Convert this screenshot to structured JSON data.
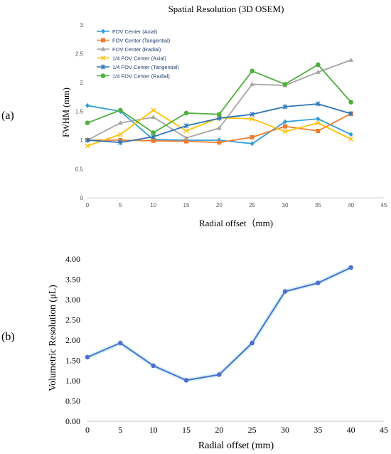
{
  "chart_data": [
    {
      "panel_label": "(a)",
      "type": "line",
      "title": "Spatial Resolution (3D OSEM)",
      "xlabel": "Radial offset（mm)",
      "ylabel": "FWHM (mm)",
      "xlim": [
        0,
        45
      ],
      "ylim": [
        0,
        3
      ],
      "xticks": [
        "0",
        "5",
        "10",
        "15",
        "20",
        "25",
        "30",
        "35",
        "40",
        "45"
      ],
      "yticks": [
        "0",
        "0.5",
        "1",
        "1.5",
        "2",
        "2.5",
        "3"
      ],
      "legend_position": "top-left",
      "grid": false,
      "x": [
        0,
        5,
        10,
        15,
        20,
        25,
        30,
        35,
        40
      ],
      "series": [
        {
          "name": "FOV Center (Axial)",
          "color": "#2e9fd6",
          "marker": "diamond",
          "values": [
            1.6,
            1.5,
            1.01,
            1.0,
            1.0,
            0.94,
            1.32,
            1.37,
            1.1
          ]
        },
        {
          "name": "FOV Center (Tangential)",
          "color": "#ed7d31",
          "marker": "square",
          "values": [
            1.0,
            1.0,
            0.99,
            0.98,
            0.96,
            1.05,
            1.24,
            1.16,
            1.46
          ]
        },
        {
          "name": "FOV Center (Radial)",
          "color": "#a5a5a5",
          "marker": "triangle",
          "values": [
            1.0,
            1.3,
            1.4,
            1.04,
            1.21,
            1.97,
            1.95,
            2.18,
            2.39
          ]
        },
        {
          "name": "1/4 FOV Center (Axial)",
          "color": "#ffc000",
          "marker": "x",
          "values": [
            0.9,
            1.1,
            1.52,
            1.16,
            1.39,
            1.37,
            1.15,
            1.3,
            1.02
          ]
        },
        {
          "name": "1/4 FOV Center (Tangential)",
          "color": "#2e75b6",
          "marker": "star",
          "values": [
            1.0,
            0.96,
            1.06,
            1.25,
            1.38,
            1.45,
            1.58,
            1.63,
            1.46
          ]
        },
        {
          "name": "1/4 FOV Center (Radial)",
          "color": "#4eaf3c",
          "marker": "circle",
          "values": [
            1.3,
            1.52,
            1.13,
            1.47,
            1.45,
            2.2,
            1.97,
            2.31,
            1.66
          ]
        }
      ]
    },
    {
      "panel_label": "(b)",
      "type": "line",
      "xlabel": "Radial offset (mm)",
      "ylabel": "Volumetric Resolution (μL)",
      "xlim": [
        0,
        45
      ],
      "ylim": [
        0,
        4
      ],
      "xticks": [
        "0",
        "5",
        "10",
        "15",
        "20",
        "25",
        "30",
        "35",
        "40",
        "45"
      ],
      "yticks": [
        "0.00",
        "0.50",
        "1.00",
        "1.50",
        "2.00",
        "2.50",
        "3.00",
        "3.50",
        "4.00"
      ],
      "grid": false,
      "x": [
        0,
        5,
        10,
        15,
        20,
        25,
        30,
        35,
        40
      ],
      "series": [
        {
          "color": "#4f6fd0",
          "marker": "circle",
          "values": [
            1.58,
            1.93,
            1.37,
            1.01,
            1.15,
            1.93,
            3.2,
            3.41,
            3.79
          ]
        }
      ]
    }
  ]
}
